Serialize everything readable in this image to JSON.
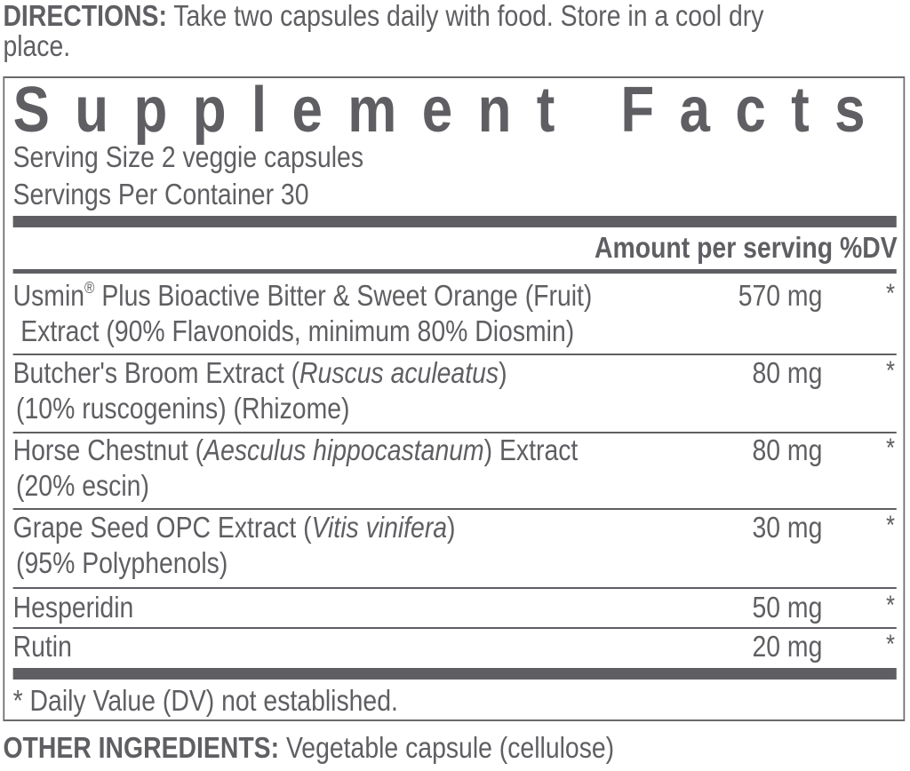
{
  "directions": {
    "label": "DIRECTIONS:",
    "text_line1": "Take two capsules daily with food. Store in a cool dry",
    "text_line2": "place."
  },
  "facts": {
    "title": "Supplement Facts",
    "serving_size": "Serving Size 2 veggie capsules",
    "servings_per_container": "Servings Per Container 30",
    "header_amount": "Amount per serving",
    "header_dv": "%DV",
    "rows": [
      {
        "line1": [
          "Usmin",
          "®",
          " Plus Bioactive Bitter & Sweet Orange (Fruit)"
        ],
        "line2": [
          "Extract (90% Flavonoids, minimum 80% Diosmin)"
        ],
        "amount": "570 mg",
        "dv": "*"
      },
      {
        "line1": [
          "Butcher's Broom Extract (",
          "Ruscus aculeatus",
          ")"
        ],
        "line2": [
          "(10% ruscogenins) (Rhizome)"
        ],
        "amount": "80 mg",
        "dv": "*"
      },
      {
        "line1": [
          "Horse Chestnut (",
          "Aesculus hippocastanum",
          ") Extract"
        ],
        "line2": [
          "(20% escin)"
        ],
        "amount": "80 mg",
        "dv": "*"
      },
      {
        "line1": [
          "Grape Seed OPC Extract (",
          "Vitis vinifera",
          ")"
        ],
        "line2": [
          "(95% Polyphenols)"
        ],
        "amount": "30 mg",
        "dv": "*"
      },
      {
        "line1": [
          "Hesperidin"
        ],
        "amount": "50 mg",
        "dv": "*"
      },
      {
        "line1": [
          "Rutin"
        ],
        "amount": "20 mg",
        "dv": "*"
      }
    ],
    "footnote": "* Daily Value (DV) not established."
  },
  "other_ingredients": {
    "label": "OTHER INGREDIENTS:",
    "text": "Vegetable capsule (cellulose)"
  },
  "colors": {
    "text": "#5f5f63",
    "background": "#ffffff"
  }
}
